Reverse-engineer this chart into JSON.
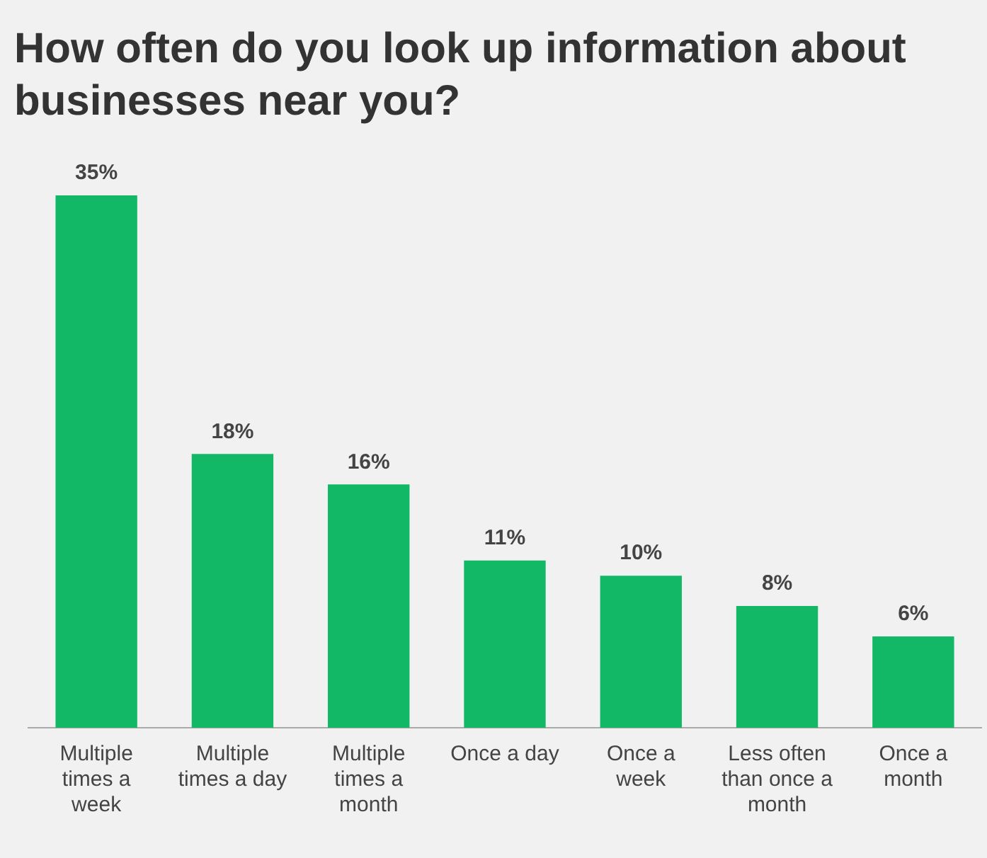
{
  "chart_data": {
    "type": "bar",
    "title": "How often do you look up information about businesses near you?",
    "categories": [
      "Multiple times a week",
      "Multiple times a day",
      "Multiple times a month",
      "Once a day",
      "Once a week",
      "Less often than once a month",
      "Once a month"
    ],
    "values": [
      35,
      18,
      16,
      11,
      10,
      8,
      6
    ],
    "value_labels": [
      "35%",
      "18%",
      "16%",
      "11%",
      "10%",
      "8%",
      "6%"
    ],
    "color": "#12b866",
    "grid": false,
    "legend": false
  }
}
